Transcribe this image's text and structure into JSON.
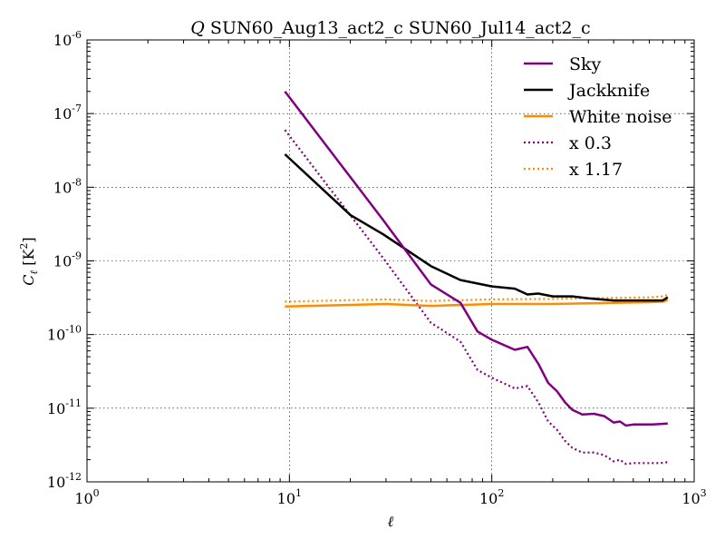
{
  "chart_data": {
    "type": "line",
    "title": "Q SUN60_Aug13_act2_c SUN60_Jul14_act2_c",
    "title_prefix": "Q",
    "title_text": "SUN60_Aug13_act2_c SUN60_Jul14_act2_c",
    "xlabel": "ℓ",
    "ylabel_main": "C",
    "ylabel_sub": "ℓ",
    "ylabel_unit": "[K",
    "ylabel_unit_sup": "2",
    "ylabel_unit_close": "]",
    "xscale": "log",
    "yscale": "log",
    "xlim": [
      1,
      1000
    ],
    "ylim": [
      1e-12,
      1e-06
    ],
    "grid": true,
    "legend_position": "top-right",
    "xticks": [
      {
        "value": 1,
        "base": "10",
        "exp": "0"
      },
      {
        "value": 10,
        "base": "10",
        "exp": "1"
      },
      {
        "value": 100,
        "base": "10",
        "exp": "2"
      },
      {
        "value": 1000,
        "base": "10",
        "exp": "3"
      }
    ],
    "yticks": [
      {
        "value": 1e-12,
        "base": "10",
        "exp": "-12"
      },
      {
        "value": 1e-11,
        "base": "10",
        "exp": "-11"
      },
      {
        "value": 1e-10,
        "base": "10",
        "exp": "-10"
      },
      {
        "value": 1e-09,
        "base": "10",
        "exp": "-9"
      },
      {
        "value": 1e-08,
        "base": "10",
        "exp": "-8"
      },
      {
        "value": 1e-07,
        "base": "10",
        "exp": "-7"
      },
      {
        "value": 1e-06,
        "base": "10",
        "exp": "-6"
      }
    ],
    "series": [
      {
        "name": "Sky",
        "color": "#800080",
        "style": "solid",
        "x": [
          9.5,
          29,
          50,
          70,
          85,
          100,
          130,
          150,
          170,
          190,
          210,
          230,
          250,
          280,
          320,
          360,
          400,
          430,
          460,
          500,
          560,
          620,
          680,
          740
        ],
        "y": [
          2e-07,
          3.6e-09,
          4.8e-10,
          2.7e-10,
          1.1e-10,
          8.5e-11,
          6.2e-11,
          6.8e-11,
          4e-11,
          2.2e-11,
          1.7e-11,
          1.2e-11,
          9.5e-12,
          8.2e-12,
          8.4e-12,
          7.8e-12,
          6.4e-12,
          6.6e-12,
          5.8e-12,
          6e-12,
          6e-12,
          6e-12,
          6.1e-12,
          6.2e-12
        ]
      },
      {
        "name": "Jackknife",
        "color": "#000000",
        "style": "solid",
        "x": [
          9.5,
          20,
          29,
          50,
          70,
          100,
          130,
          150,
          170,
          200,
          250,
          300,
          400,
          500,
          600,
          700,
          740
        ],
        "y": [
          2.8e-08,
          4.2e-09,
          2.3e-09,
          8.5e-10,
          5.5e-10,
          4.5e-10,
          4.2e-10,
          3.5e-10,
          3.6e-10,
          3.3e-10,
          3.3e-10,
          3.1e-10,
          2.9e-10,
          2.9e-10,
          2.9e-10,
          2.9e-10,
          3.2e-10
        ]
      },
      {
        "name": "White noise",
        "color": "#ff8c00",
        "style": "solid",
        "x": [
          9.5,
          30,
          50,
          100,
          200,
          400,
          600,
          700,
          740
        ],
        "y": [
          2.4e-10,
          2.6e-10,
          2.45e-10,
          2.6e-10,
          2.6e-10,
          2.7e-10,
          2.75e-10,
          2.8e-10,
          2.95e-10
        ]
      },
      {
        "name": "x 0.3",
        "color": "#800080",
        "style": "dotted",
        "x": [
          9.5,
          29,
          50,
          70,
          85,
          100,
          130,
          150,
          170,
          190,
          210,
          230,
          250,
          280,
          320,
          360,
          400,
          430,
          460,
          500,
          560,
          620,
          680,
          740
        ],
        "y": [
          6e-08,
          1.1e-09,
          1.45e-10,
          8e-11,
          3.3e-11,
          2.6e-11,
          1.85e-11,
          2e-11,
          1.2e-11,
          6.6e-12,
          5.1e-12,
          3.6e-12,
          2.9e-12,
          2.5e-12,
          2.5e-12,
          2.3e-12,
          1.9e-12,
          2e-12,
          1.75e-12,
          1.8e-12,
          1.8e-12,
          1.8e-12,
          1.8e-12,
          1.85e-12
        ]
      },
      {
        "name": "x 1.17",
        "color": "#ff8c00",
        "style": "dotted",
        "x": [
          9.5,
          30,
          50,
          100,
          200,
          400,
          600,
          700,
          740
        ],
        "y": [
          2.8e-10,
          3e-10,
          2.85e-10,
          3e-10,
          3.05e-10,
          3.15e-10,
          3.2e-10,
          3.3e-10,
          3.45e-10
        ]
      }
    ]
  }
}
